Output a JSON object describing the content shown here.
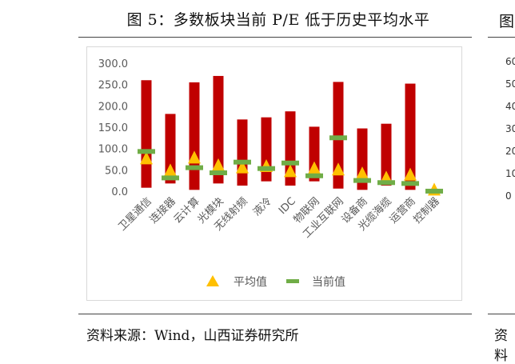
{
  "figure": {
    "title": "图 5：多数板块当前 P/E 低于历史平均水平",
    "source": "资料来源：Wind，山西证券研究所"
  },
  "neighbor": {
    "title_fragment": "图",
    "ticks": [
      "60",
      "50",
      "40",
      "30",
      "20",
      "10",
      "0"
    ],
    "source_fragment": "资料"
  },
  "chart_data": {
    "type": "bar",
    "title": "",
    "xlabel": "",
    "ylabel": "",
    "ylim": [
      0,
      300
    ],
    "yticks": [
      "300.0",
      "250.0",
      "200.0",
      "150.0",
      "100.0",
      "50.0",
      "0.0"
    ],
    "categories": [
      "卫星通信",
      "连接器",
      "云计算",
      "光模块",
      "无线射频",
      "液冷",
      "IDC",
      "物联网",
      "工业互联网",
      "设备商",
      "光缆海缆",
      "运营商",
      "控制器"
    ],
    "range_bars": {
      "color": "#c00000",
      "low": [
        10,
        20,
        5,
        20,
        15,
        25,
        15,
        25,
        8,
        5,
        15,
        5,
        0
      ],
      "high": [
        262,
        183,
        257,
        272,
        170,
        175,
        189,
        153,
        258,
        149,
        160,
        254,
        3
      ]
    },
    "series": [
      {
        "name": "平均值",
        "marker": "triangle",
        "color": "#ffc000",
        "values": [
          78,
          50,
          80,
          62,
          57,
          60,
          48,
          55,
          52,
          43,
          33,
          40,
          5
        ]
      },
      {
        "name": "当前值",
        "marker": "dash",
        "color": "#70ad47",
        "values": [
          95,
          33,
          57,
          45,
          70,
          55,
          68,
          38,
          127,
          27,
          22,
          20,
          2
        ]
      }
    ],
    "legend_position": "bottom",
    "grid": false
  }
}
